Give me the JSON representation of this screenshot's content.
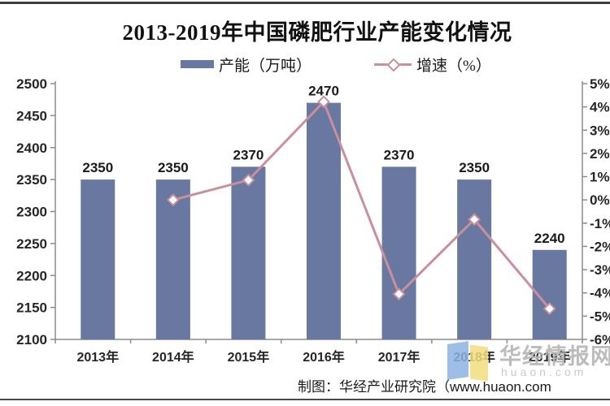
{
  "title": "2013-2019年中国磷肥行业产能变化情况",
  "legend": {
    "bar_label": "产能（万吨）",
    "line_label": "增速（%）"
  },
  "chart_data": {
    "type": "bar",
    "title": "2013-2019年中国磷肥行业产能变化情况",
    "categories": [
      "2013年",
      "2014年",
      "2015年",
      "2016年",
      "2017年",
      "2018年",
      "2019年"
    ],
    "series": [
      {
        "name": "产能（万吨）",
        "type": "bar",
        "axis": "left",
        "values": [
          2350,
          2350,
          2370,
          2470,
          2370,
          2350,
          2240
        ],
        "labels": [
          "2350",
          "2350",
          "2370",
          "2470",
          "2370",
          "2350",
          "2240"
        ]
      },
      {
        "name": "增速（%）",
        "type": "line",
        "axis": "right",
        "start_index": 1,
        "values": [
          0.0,
          0.85,
          4.22,
          -4.05,
          -0.84,
          -4.68
        ]
      }
    ],
    "left_axis": {
      "min": 2100,
      "max": 2500,
      "step": 50,
      "ticks": [
        2500,
        2450,
        2400,
        2350,
        2300,
        2250,
        2200,
        2150,
        2100
      ]
    },
    "right_axis": {
      "min": -6,
      "max": 5,
      "step": 1,
      "ticks": [
        "5%",
        "4%",
        "3%",
        "2%",
        "1%",
        "0%",
        "-1%",
        "-2%",
        "-3%",
        "-4%",
        "-5%",
        "-6%"
      ]
    },
    "grid": false,
    "legend_position": "top"
  },
  "colors": {
    "bar": "#6878a0",
    "line": "#c9909c",
    "marker_fill": "#ffffff",
    "axis": "#8c8c8c",
    "tick_text": "#262626",
    "bar_label_text": "#1a1a1a"
  },
  "footer": {
    "attribution": "制图：华经产业研究院（www.huaon.com"
  },
  "watermark": {
    "brand": "华经情报网",
    "domain": "huaon.com"
  }
}
